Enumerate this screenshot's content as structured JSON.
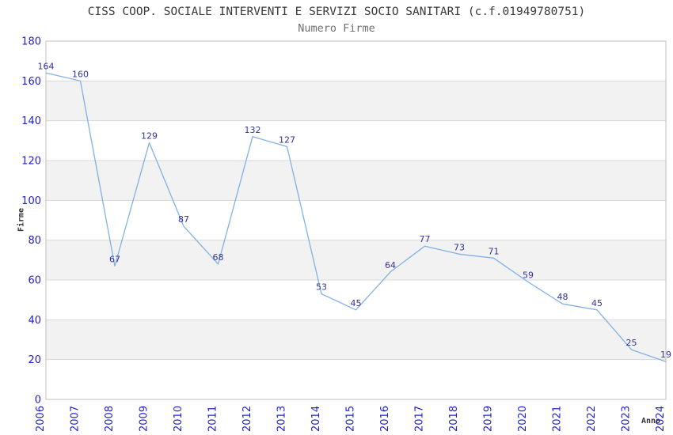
{
  "header": {
    "title": "CISS COOP. SOCIALE INTERVENTI E SERVIZI SOCIO SANITARI (c.f.01949780751)",
    "subtitle": "Numero Firme"
  },
  "chart_data": {
    "type": "line",
    "title": "CISS COOP. SOCIALE INTERVENTI E SERVIZI SOCIO SANITARI (c.f.01949780751)",
    "subtitle": "Numero Firme",
    "xlabel": "Anno",
    "ylabel": "Firme",
    "categories": [
      "2006",
      "2007",
      "2008",
      "2009",
      "2010",
      "2011",
      "2012",
      "2013",
      "2014",
      "2015",
      "2016",
      "2017",
      "2018",
      "2019",
      "2020",
      "2021",
      "2022",
      "2023",
      "2024"
    ],
    "values": [
      164,
      160,
      67,
      129,
      87,
      68,
      132,
      127,
      53,
      45,
      64,
      77,
      73,
      71,
      59,
      48,
      45,
      25,
      19
    ],
    "data_labels_shown": true,
    "ylim": [
      0,
      180
    ],
    "ytick_interval": 20,
    "yticks": [
      0,
      20,
      40,
      60,
      80,
      100,
      120,
      140,
      160,
      180
    ],
    "grid": true,
    "legend": "none",
    "plot_background": "alternating-horizontal-bands",
    "colors": {
      "line": "#82B1E6",
      "data_label": "#333399",
      "tick_label": "#1E1ED2",
      "band": "#F2F2F2",
      "band_alt": "#FFFFFF",
      "grid_line": "#D9D9D9",
      "plot_border": "#C0C0C0",
      "title": "#3A3A3A",
      "subtitle": "#707070",
      "axis_title": "#333333",
      "background": "#FFFFFF"
    }
  }
}
